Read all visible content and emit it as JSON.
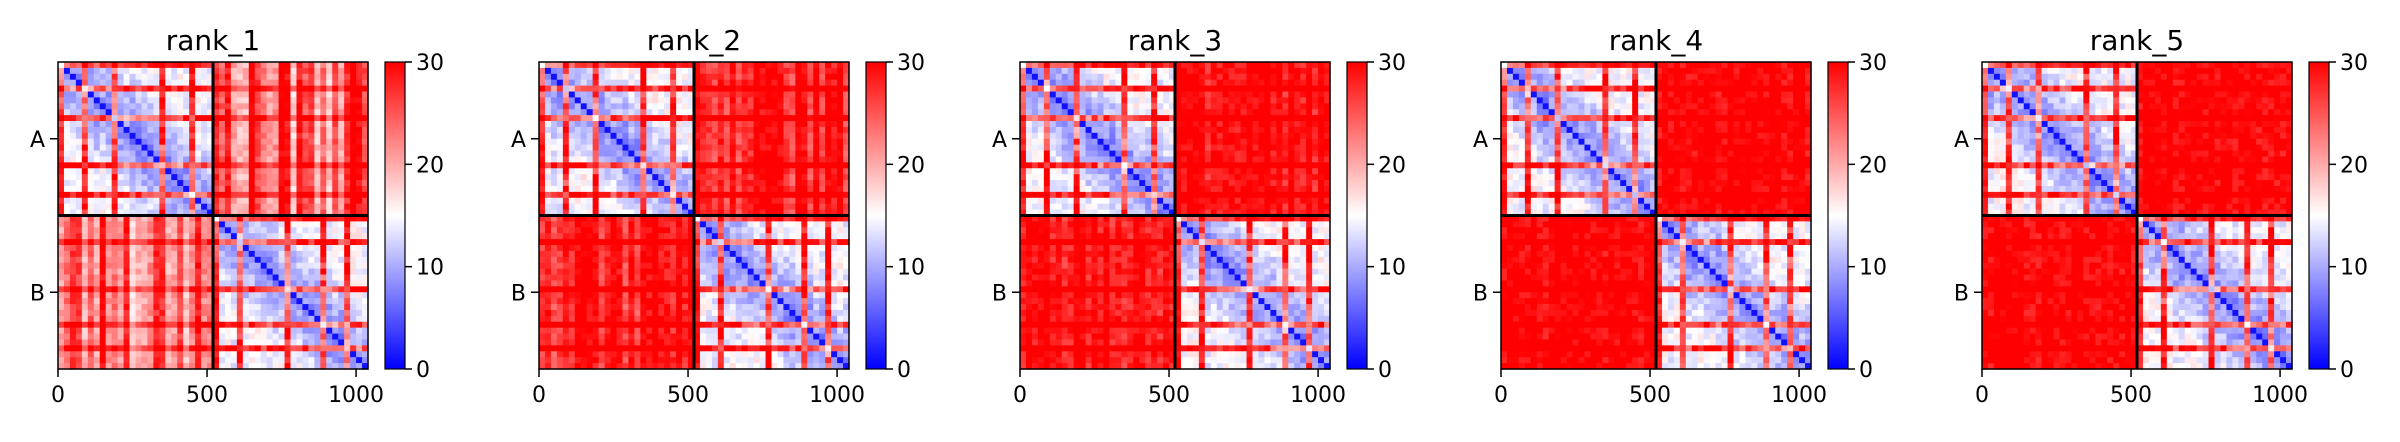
{
  "chart_data": {
    "type": "heatmap",
    "colormap": [
      "#0000ff",
      "#ffffff",
      "#ff0000"
    ],
    "colorbar": {
      "min": 0,
      "max": 30,
      "ticks": [
        0,
        10,
        20,
        30
      ]
    },
    "chain_labels": [
      "A",
      "B"
    ],
    "chain_boundary": 520,
    "xlim": [
      0,
      1040
    ],
    "x_ticks": [
      0,
      500,
      1000
    ],
    "grid": false,
    "panels": [
      {
        "title": "rank_1",
        "inter_chain_error": 24
      },
      {
        "title": "rank_2",
        "inter_chain_error": 28
      },
      {
        "title": "rank_3",
        "inter_chain_error": 29
      },
      {
        "title": "rank_4",
        "inter_chain_error": 30
      },
      {
        "title": "rank_5",
        "inter_chain_error": 30
      }
    ]
  }
}
